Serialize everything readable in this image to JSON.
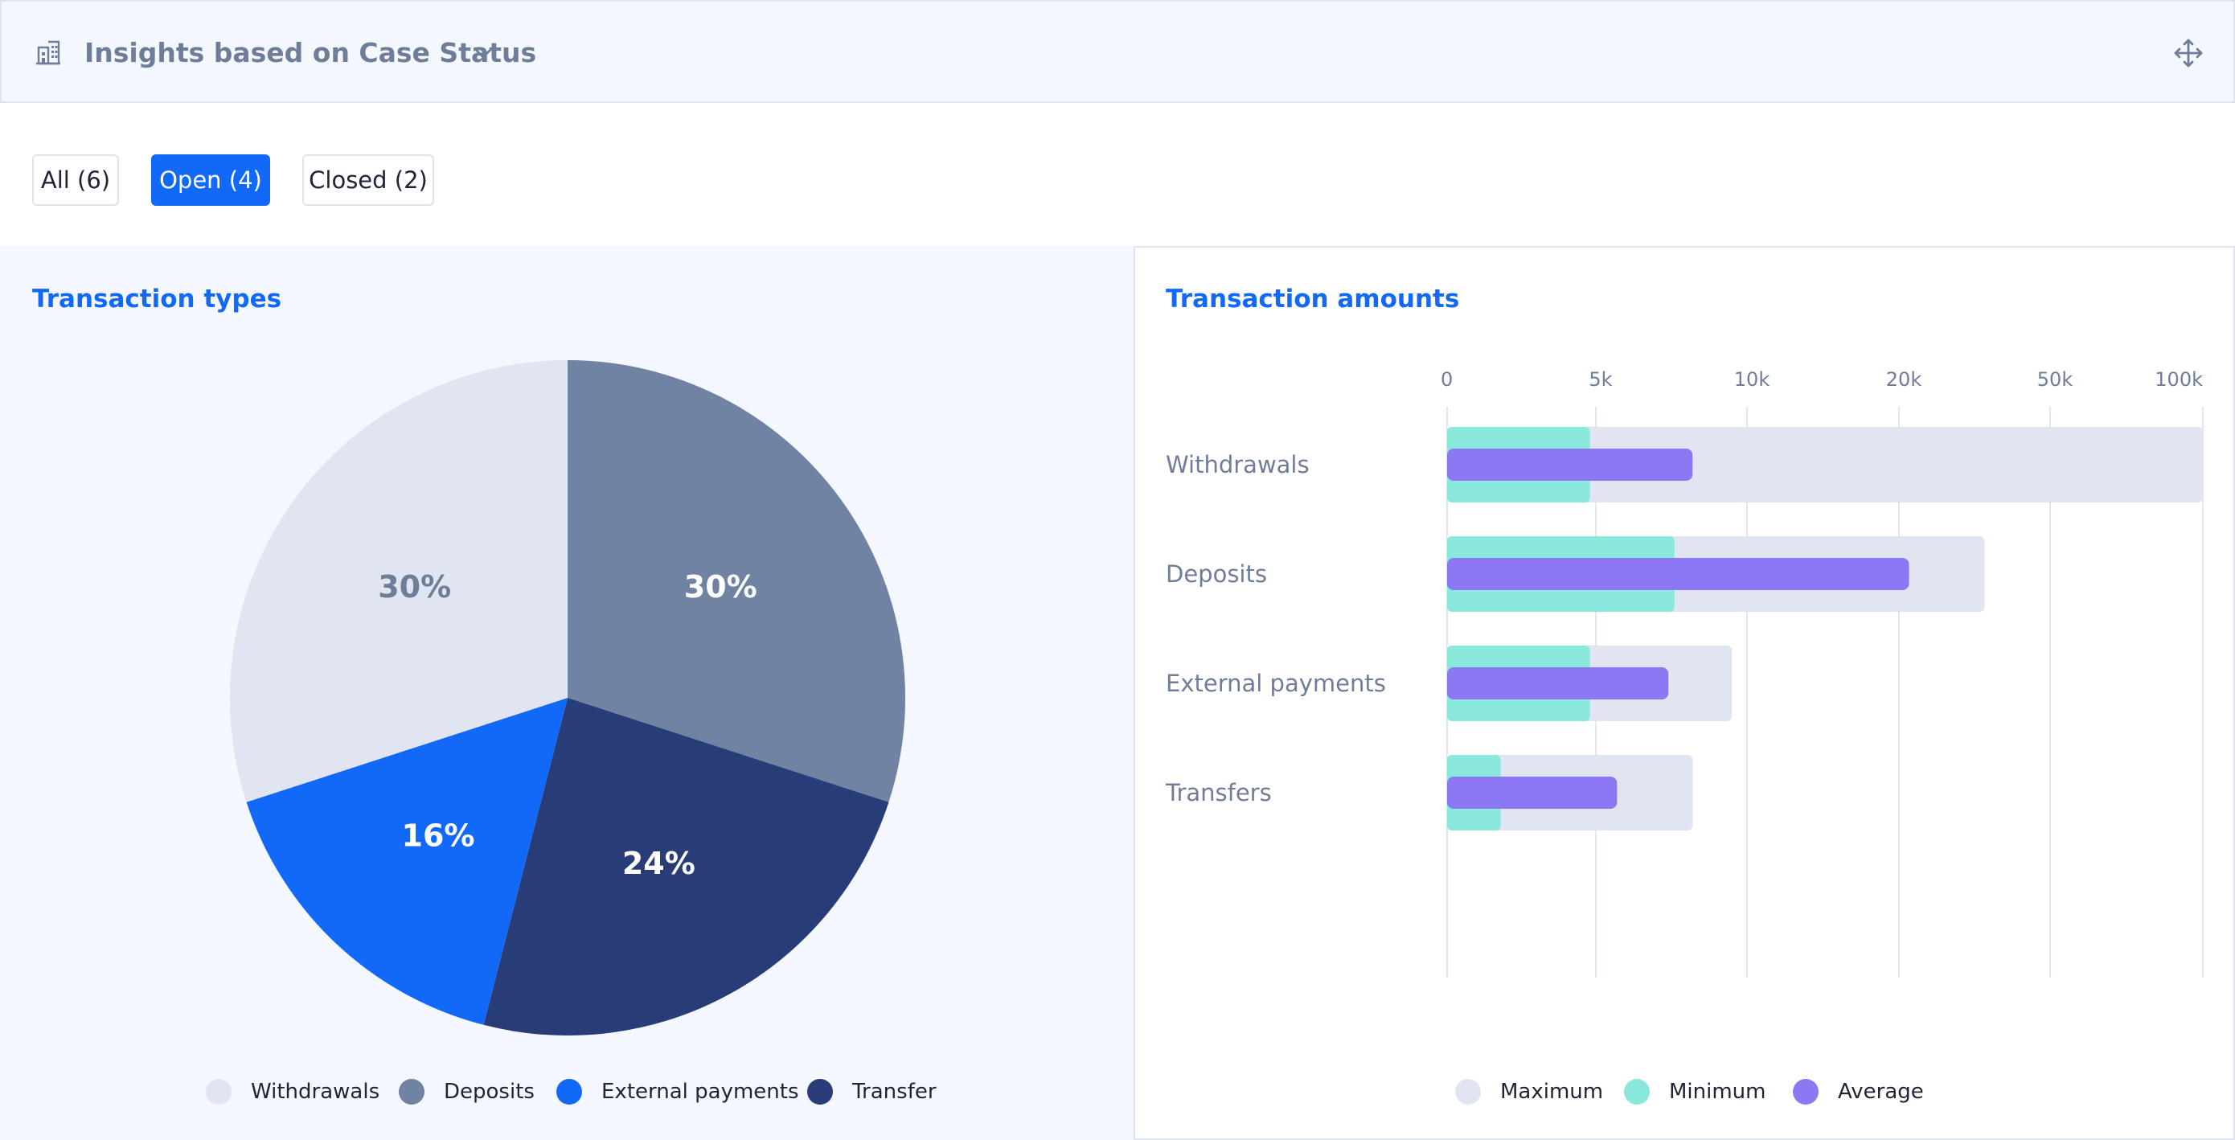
{
  "header": {
    "title": "Insights based on Case Status",
    "icons": [
      "building-icon",
      "chevron-down-icon",
      "move-icon"
    ]
  },
  "filters": [
    {
      "label": "All (6)",
      "active": false
    },
    {
      "label": "Open (4)",
      "active": true
    },
    {
      "label": "Closed (2)",
      "active": false
    }
  ],
  "colors": {
    "accent": "#1269f7",
    "withdrawals": "#e0e5f1",
    "deposits": "#7183a2",
    "external_payments": "#1269f7",
    "transfer": "#283d78",
    "maximum": "#e0e5f1",
    "minimum": "#8ae8dc",
    "average": "#8c78f2"
  },
  "pie_chart": {
    "title": "Transaction types",
    "legend": [
      "Withdrawals",
      "Deposits",
      "External payments",
      "Transfer"
    ]
  },
  "bar_chart": {
    "title": "Transaction amounts",
    "legend": [
      "Maximum",
      "Minimum",
      "Average"
    ]
  },
  "chart_data": [
    {
      "type": "pie",
      "title": "Transaction types",
      "categories": [
        "Deposits",
        "Transfer",
        "External payments",
        "Withdrawals"
      ],
      "values": [
        30,
        24,
        16,
        30
      ],
      "labels": [
        "30%",
        "24%",
        "16%",
        "30%"
      ],
      "legend": [
        "Withdrawals",
        "Deposits",
        "External payments",
        "Transfer"
      ]
    },
    {
      "type": "bar",
      "orientation": "horizontal",
      "title": "Transaction amounts",
      "categories": [
        "Withdrawals",
        "Deposits",
        "External payments",
        "Transfers"
      ],
      "tick_labels": [
        "0",
        "5k",
        "10k",
        "20k",
        "50k",
        "100k"
      ],
      "ticks": [
        0,
        5000,
        10000,
        20000,
        50000,
        100000
      ],
      "series": [
        {
          "name": "Maximum",
          "values": [
            100000,
            37000,
            9500,
            8200
          ]
        },
        {
          "name": "Minimum",
          "values": [
            4800,
            7600,
            4800,
            1800
          ]
        },
        {
          "name": "Average",
          "values": [
            8200,
            22000,
            7400,
            5700
          ]
        }
      ],
      "legend": [
        "Maximum",
        "Minimum",
        "Average"
      ],
      "grid": true
    }
  ]
}
